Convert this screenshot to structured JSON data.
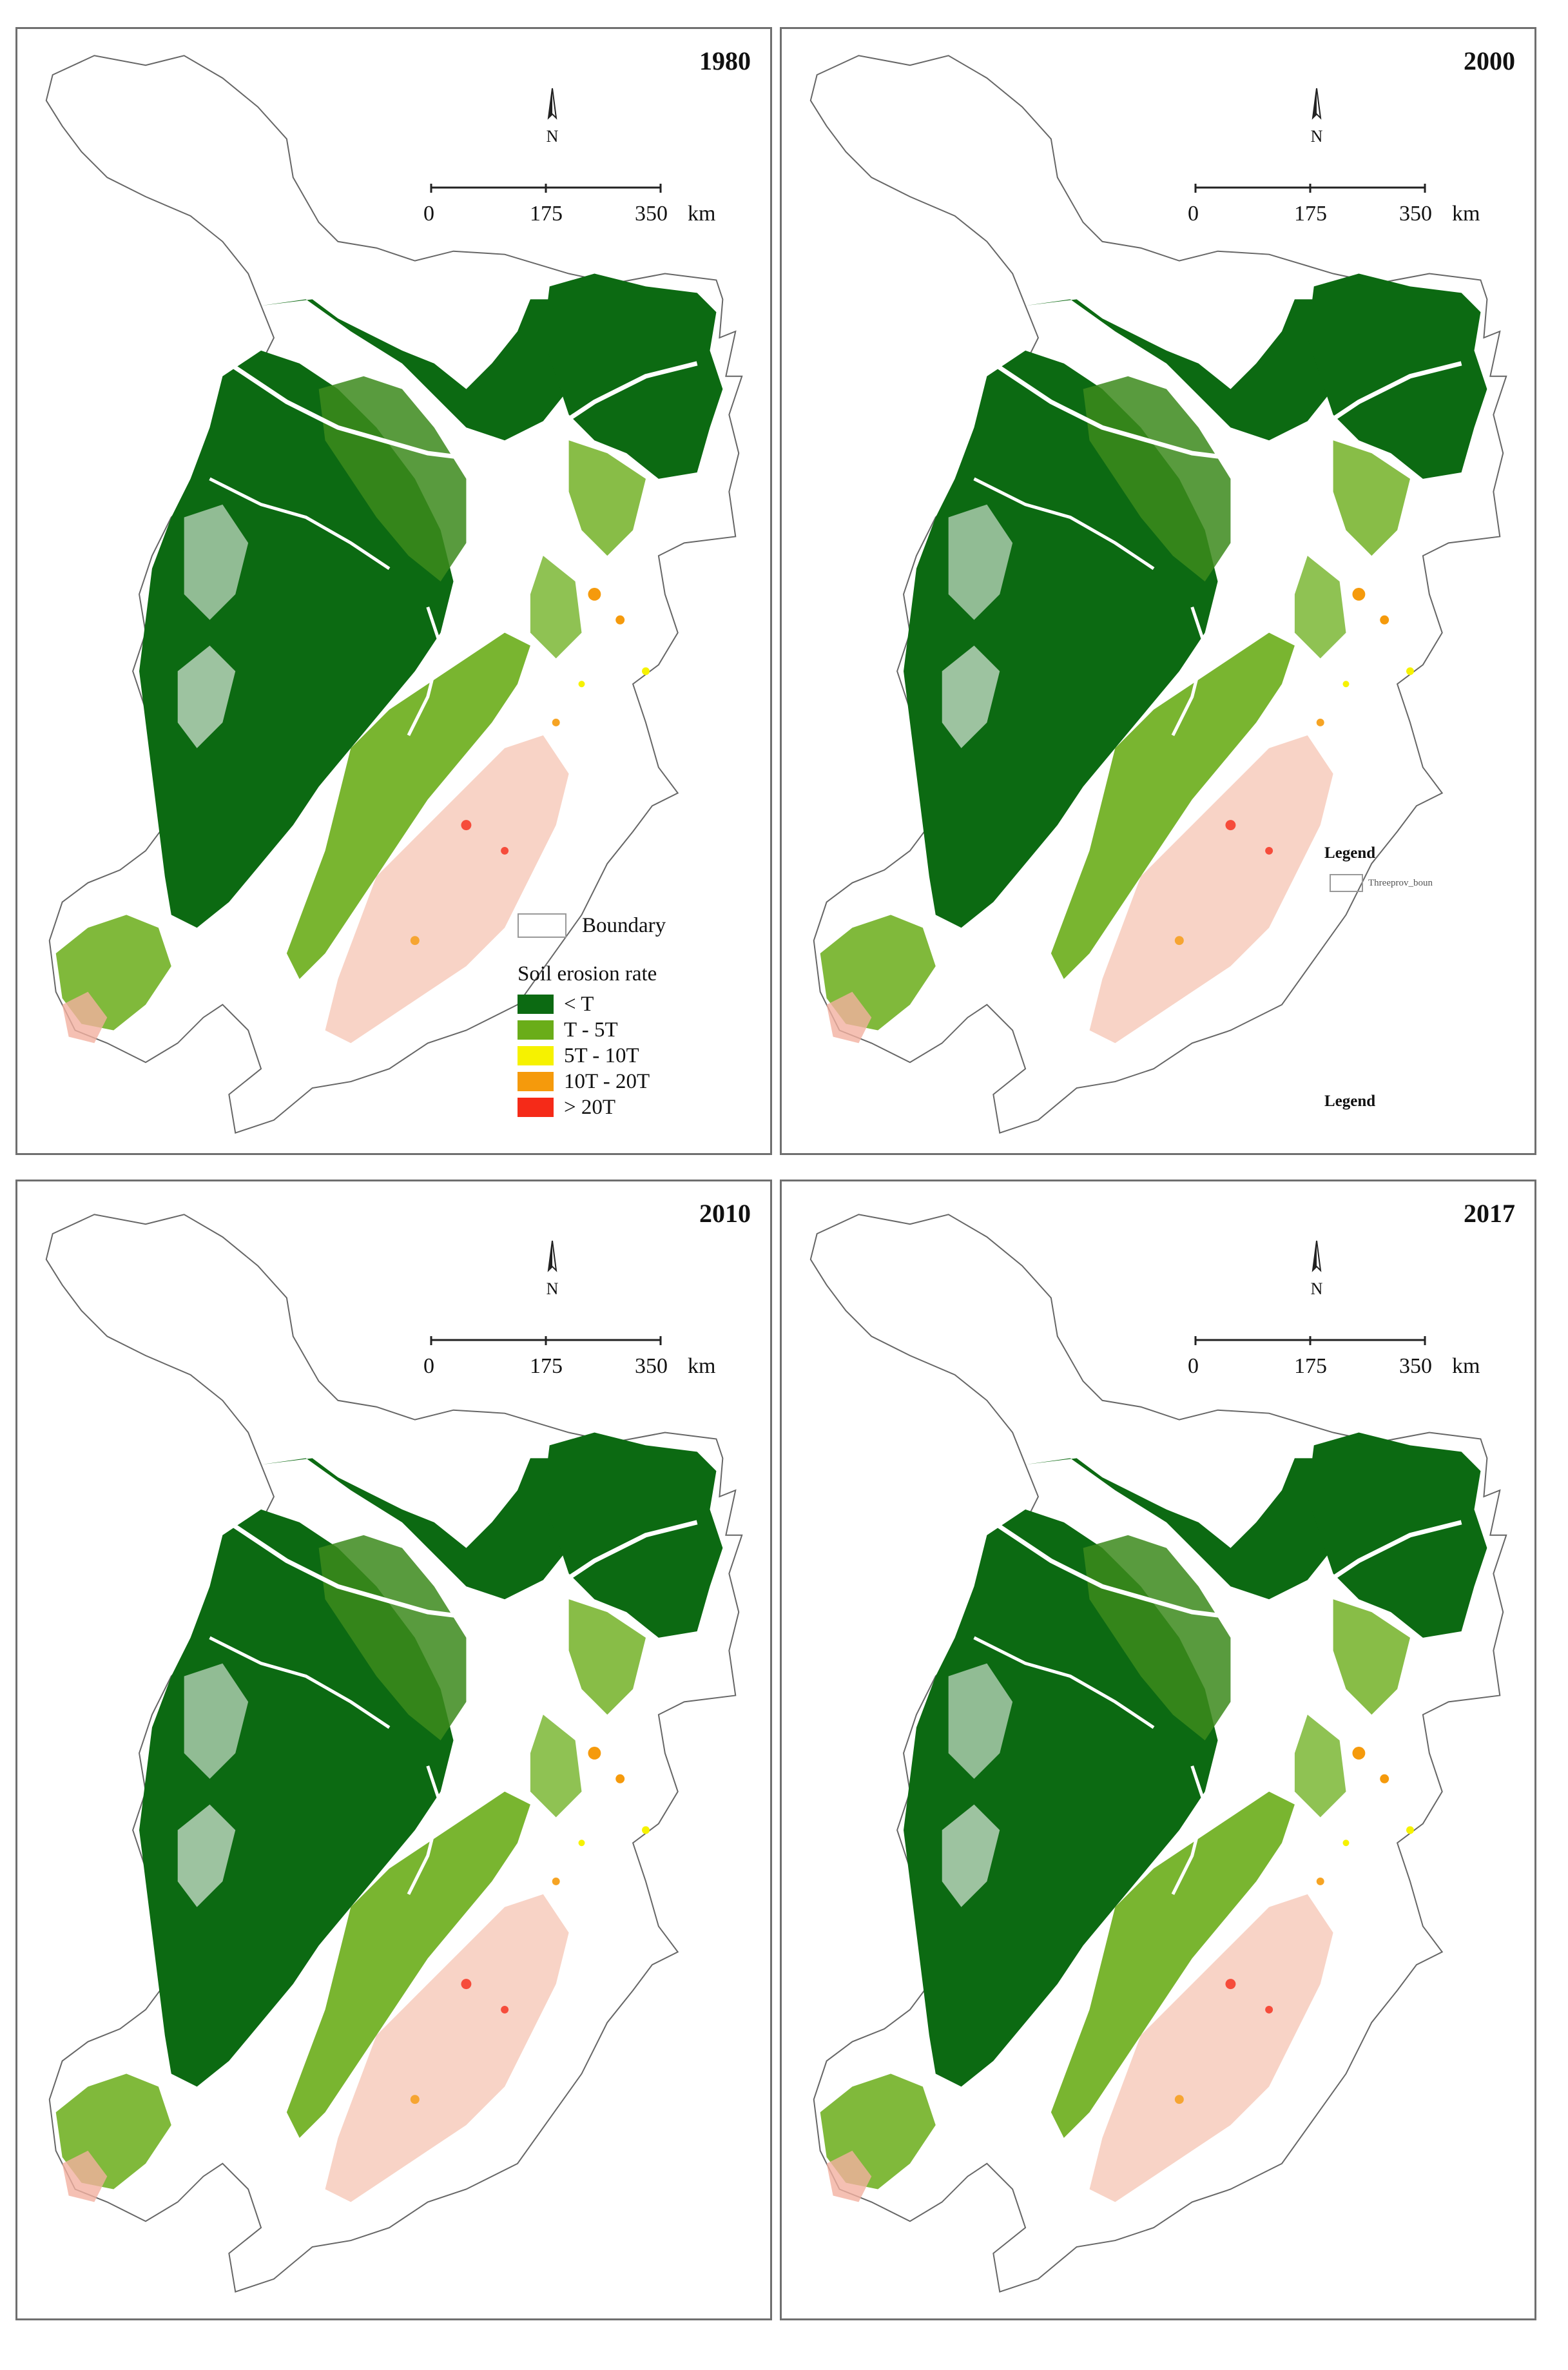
{
  "panels": [
    {
      "year": "1980"
    },
    {
      "year": "2000"
    },
    {
      "year": "2010"
    },
    {
      "year": "2017"
    }
  ],
  "north_label": "N",
  "scale_labels": [
    "0",
    "175",
    "350",
    "km"
  ],
  "legend": {
    "boundary_label": "Boundary",
    "title": "Soil erosion rate",
    "classes": [
      {
        "label": "< T",
        "color": "#0c6a12"
      },
      {
        "label": "T - 5T",
        "color": "#6aad19"
      },
      {
        "label": "5T - 10T",
        "color": "#f6f200"
      },
      {
        "label": "10T - 20T",
        "color": "#f59a0c"
      },
      {
        "label": "> 20T",
        "color": "#f52a18"
      }
    ]
  },
  "panel2_extra": {
    "legend_label": "Legend",
    "layer_name": "Threeprov_boun",
    "legend_label_bottom": "Legend"
  }
}
